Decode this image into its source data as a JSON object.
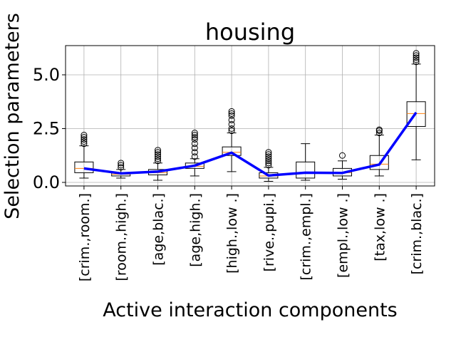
{
  "chart_data": {
    "type": "box",
    "title": "housing",
    "xlabel": "Active interaction components",
    "ylabel": "Selection parameters",
    "ylim": [
      -0.1,
      6.4
    ],
    "yticks": [
      0.0,
      2.5,
      5.0
    ],
    "ytick_labels": [
      "0.0",
      "2.5",
      "5.0"
    ],
    "grid": true,
    "categories": [
      "[crim.,room.]",
      "[room.,high.]",
      "[age,blac.]",
      "[age,high.]",
      "[high.,low .]",
      "[rive.,pupi.]",
      "[crim.,empl.]",
      "[empl.,low .]",
      "[tax,low .]",
      "[crim.,blac.]"
    ],
    "boxes": [
      {
        "whisker_low": 0.2,
        "q1": 0.45,
        "median": 0.65,
        "q3": 0.95,
        "whisker_high": 1.7,
        "outliers": [
          1.8,
          1.9,
          2.0,
          2.1,
          2.2
        ]
      },
      {
        "whisker_low": 0.2,
        "q1": 0.3,
        "median": 0.38,
        "q3": 0.45,
        "whisker_high": 0.6,
        "outliers": [
          0.7,
          0.8,
          0.9
        ]
      },
      {
        "whisker_low": 0.1,
        "q1": 0.35,
        "median": 0.45,
        "q3": 0.6,
        "whisker_high": 0.9,
        "outliers": [
          1.0,
          1.1,
          1.2,
          1.3,
          1.4,
          1.5
        ]
      },
      {
        "whisker_low": 0.3,
        "q1": 0.65,
        "median": 0.75,
        "q3": 0.9,
        "whisker_high": 1.1,
        "outliers": [
          1.2,
          1.4,
          1.6,
          1.8,
          2.0,
          2.1,
          2.2,
          2.3
        ]
      },
      {
        "whisker_low": 0.5,
        "q1": 1.25,
        "median": 1.4,
        "q3": 1.65,
        "whisker_high": 2.3,
        "outliers": [
          2.4,
          2.5,
          2.7,
          2.9,
          3.1,
          3.2,
          3.3
        ]
      },
      {
        "whisker_low": 0.05,
        "q1": 0.2,
        "median": 0.3,
        "q3": 0.45,
        "whisker_high": 0.7,
        "outliers": [
          0.8,
          0.9,
          1.0,
          1.1,
          1.2,
          1.3,
          1.4
        ]
      },
      {
        "whisker_low": 0.1,
        "q1": 0.2,
        "median": 0.45,
        "q3": 0.95,
        "whisker_high": 1.8,
        "outliers": []
      },
      {
        "whisker_low": 0.15,
        "q1": 0.3,
        "median": 0.45,
        "q3": 0.65,
        "whisker_high": 1.0,
        "outliers": [
          1.25
        ]
      },
      {
        "whisker_low": 0.3,
        "q1": 0.6,
        "median": 0.85,
        "q3": 1.25,
        "whisker_high": 2.2,
        "outliers": [
          2.3,
          2.4,
          2.45
        ]
      },
      {
        "whisker_low": 1.05,
        "q1": 2.6,
        "median": 3.2,
        "q3": 3.75,
        "whisker_high": 5.5,
        "outliers": [
          5.6,
          5.7,
          5.8,
          5.9,
          6.0
        ]
      }
    ],
    "series": [
      {
        "color": "#0000ff",
        "values": [
          0.65,
          0.42,
          0.5,
          0.78,
          1.38,
          0.32,
          0.45,
          0.44,
          0.83,
          3.25
        ]
      }
    ],
    "colors": {
      "median": "#ff7f0e",
      "line": "#0000ff",
      "grid": "#b0b0b0",
      "box": "#000000"
    }
  }
}
